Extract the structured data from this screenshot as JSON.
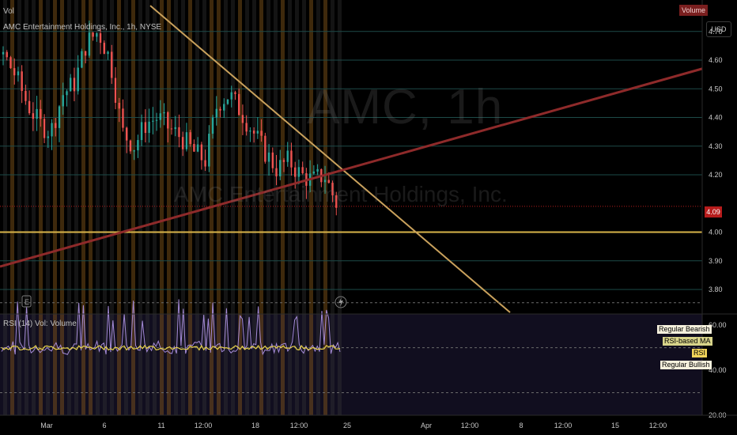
{
  "header": {
    "vol_label": "Vol",
    "symbol_line": "AMC Entertainment Holdings, Inc., 1h, NYSE",
    "currency_button": "USD",
    "volume_badge": "Volume"
  },
  "watermark": {
    "ticker": "AMC, 1h",
    "name": "AMC Entertainment Holdings, Inc."
  },
  "price_panel": {
    "last_price_label": "4.09",
    "y_ticks": [
      "4.70",
      "4.60",
      "4.50",
      "4.40",
      "4.30",
      "4.20",
      "4.00",
      "3.90",
      "3.80"
    ],
    "event_icons": [
      "earnings-icon",
      "lightning-icon"
    ]
  },
  "rsi_panel": {
    "title": "RSI (14) Vol: Volume",
    "y_ticks": [
      "60.00",
      "40.00",
      "20.00"
    ],
    "legend": {
      "bearish": "Regular Bearish",
      "ma": "RSI-based MA",
      "rsi": "RSI",
      "bullish": "Regular Bullish"
    }
  },
  "x_axis": {
    "labels": [
      "Mar",
      "6",
      "11",
      "12:00",
      "18",
      "12:00",
      "25",
      "Apr",
      "12:00",
      "8",
      "12:00",
      "15",
      "12:00"
    ]
  },
  "colors": {
    "background": "#000000",
    "candle_up": "#26a69a",
    "candle_down": "#ef5350",
    "downtrend_line": "#c9a15c",
    "uptrend_line": "#8e2a2a",
    "support_line": "#d8b44a",
    "rsi_line": "#a58bd8",
    "rsi_ma": "#e8d24a",
    "vol_band_orange": "#8a5a1a",
    "vol_band_gray": "#3a3a3a"
  },
  "chart_data": [
    {
      "type": "candlestick",
      "title": "AMC Entertainment Holdings, Inc., 1h, NYSE",
      "ylim": [
        3.72,
        4.76
      ],
      "last_price": 4.09,
      "x_categories": [
        "Mar",
        "6",
        "11",
        "12:00",
        "18",
        "12:00",
        "25",
        "Apr",
        "12:00",
        "8",
        "12:00",
        "15",
        "12:00"
      ],
      "close_path_approx": [
        4.62,
        4.55,
        4.45,
        4.38,
        4.35,
        4.48,
        4.52,
        4.66,
        4.7,
        4.6,
        4.35,
        4.3,
        4.38,
        4.4,
        4.36,
        4.33,
        4.28,
        4.25,
        4.45,
        4.48,
        4.42,
        4.35,
        4.28,
        4.22,
        4.25,
        4.2,
        4.18,
        4.2,
        4.1
      ],
      "trendlines": [
        {
          "name": "",
          "from": [
            4.79,
            "start"
          ],
          "to": [
            3.72,
            "after 25"
          ]
        },
        {
          "name": "",
          "from": [
            3.88,
            "start"
          ],
          "to": [
            4.57,
            "end"
          ]
        }
      ],
      "horizontal_lines": [
        4.0
      ],
      "annotations": [
        "E",
        "lightning"
      ]
    },
    {
      "type": "line",
      "title": "RSI (14) Vol: Volume",
      "ylim": [
        20,
        65
      ],
      "levels": [
        30,
        50,
        70
      ],
      "series": [
        {
          "name": "RSI"
        },
        {
          "name": "RSI-based MA"
        }
      ],
      "legend": [
        "Regular Bearish",
        "RSI-based MA",
        "RSI",
        "Regular Bullish"
      ]
    }
  ]
}
